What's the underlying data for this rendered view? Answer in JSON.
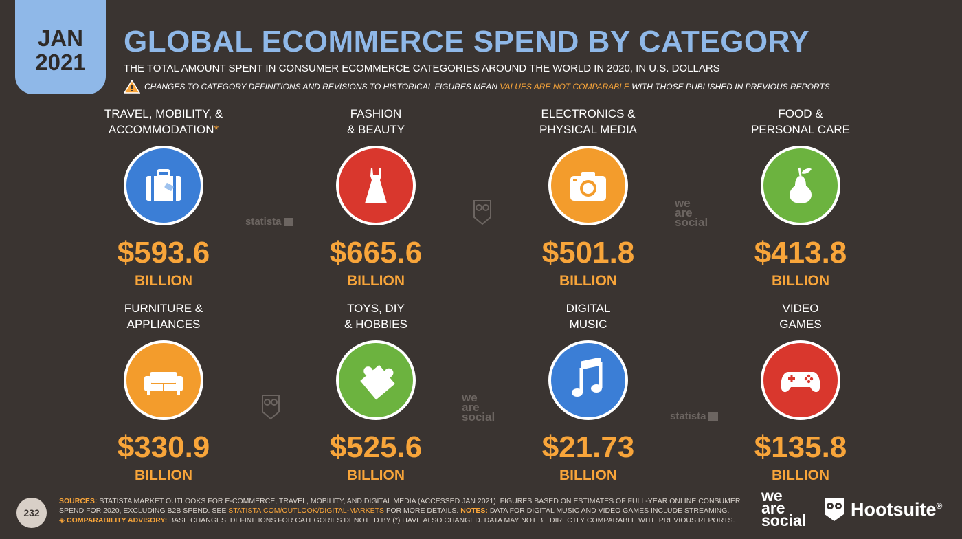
{
  "date_tab": {
    "month": "JAN",
    "year": "2021"
  },
  "title": "GLOBAL ECOMMERCE SPEND BY CATEGORY",
  "subtitle": "THE TOTAL AMOUNT SPENT IN CONSUMER ECOMMERCE CATEGORIES AROUND THE WORLD IN 2020, IN U.S. DOLLARS",
  "warning": {
    "before": "CHANGES TO CATEGORY DEFINITIONS AND REVISIONS TO HISTORICAL FIGURES MEAN",
    "highlight": "VALUES ARE NOT COMPARABLE",
    "after": "WITH THOSE PUBLISHED IN PREVIOUS REPORTS"
  },
  "colors": {
    "background": "#3a3431",
    "accent_blue": "#8fb8e8",
    "accent_orange": "#f8a53a",
    "circle_blue": "#3b7ed6",
    "circle_red": "#d9372d",
    "circle_orange": "#f39c2c",
    "circle_green": "#6cb33f"
  },
  "categories": [
    {
      "line1": "TRAVEL, MOBILITY, &",
      "line2": "ACCOMMODATION",
      "asterisk": "*",
      "icon": "suitcase-icon",
      "color": "#3b7ed6",
      "value": "$593.6",
      "unit": "BILLION"
    },
    {
      "line1": "FASHION",
      "line2": "& BEAUTY",
      "asterisk": "",
      "icon": "dress-icon",
      "color": "#d9372d",
      "value": "$665.6",
      "unit": "BILLION"
    },
    {
      "line1": "ELECTRONICS &",
      "line2": "PHYSICAL MEDIA",
      "asterisk": "",
      "icon": "camera-icon",
      "color": "#f39c2c",
      "value": "$501.8",
      "unit": "BILLION"
    },
    {
      "line1": "FOOD &",
      "line2": "PERSONAL CARE",
      "asterisk": "",
      "icon": "pear-icon",
      "color": "#6cb33f",
      "value": "$413.8",
      "unit": "BILLION"
    },
    {
      "line1": "FURNITURE &",
      "line2": "APPLIANCES",
      "asterisk": "",
      "icon": "sofa-icon",
      "color": "#f39c2c",
      "value": "$330.9",
      "unit": "BILLION"
    },
    {
      "line1": "TOYS, DIY",
      "line2": "& HOBBIES",
      "asterisk": "",
      "icon": "puzzle-icon",
      "color": "#6cb33f",
      "value": "$525.6",
      "unit": "BILLION"
    },
    {
      "line1": "DIGITAL",
      "line2": "MUSIC",
      "asterisk": "",
      "icon": "music-note-icon",
      "color": "#3b7ed6",
      "value": "$21.73",
      "unit": "BILLION"
    },
    {
      "line1": "VIDEO",
      "line2": "GAMES",
      "asterisk": "",
      "icon": "gamepad-icon",
      "color": "#d9372d",
      "value": "$135.8",
      "unit": "BILLION"
    }
  ],
  "watermarks": {
    "statista": "statista",
    "we_are_social": [
      "we",
      "are",
      "social"
    ]
  },
  "footer": {
    "page_number": "232",
    "sources_label": "SOURCES:",
    "sources_text": "STATISTA MARKET OUTLOOKS FOR E-COMMERCE, TRAVEL, MOBILITY, AND DIGITAL MEDIA (ACCESSED JAN 2021). FIGURES BASED ON ESTIMATES OF FULL-YEAR ONLINE CONSUMER SPEND FOR 2020, EXCLUDING B2B SPEND. SEE",
    "link": "STATISTA.COM/OUTLOOK/DIGITAL-MARKETS",
    "sources_after": "FOR MORE DETAILS.",
    "notes_label": "NOTES:",
    "notes_text": "DATA FOR DIGITAL MUSIC AND VIDEO GAMES INCLUDE STREAMING.",
    "advisory_label": "◈ COMPARABILITY ADVISORY:",
    "advisory_text": "BASE CHANGES. DEFINITIONS FOR CATEGORIES DENOTED BY (*) HAVE ALSO CHANGED. DATA MAY NOT BE DIRECTLY COMPARABLE WITH PREVIOUS REPORTS."
  },
  "brands": {
    "we_are_social": [
      "we",
      "are",
      "social"
    ],
    "hootsuite": "Hootsuite",
    "hootsuite_mark": "®"
  }
}
